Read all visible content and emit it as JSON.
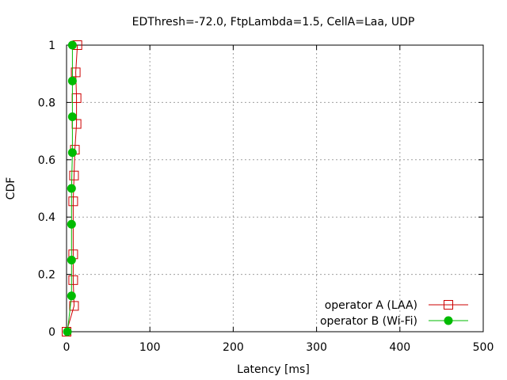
{
  "chart_data": {
    "type": "line",
    "title": "EDThresh=-72.0, FtpLambda=1.5, CellA=Laa, UDP",
    "xlabel": "Latency [ms]",
    "ylabel": "CDF",
    "xlim": [
      0,
      500
    ],
    "ylim": [
      0,
      1
    ],
    "xticks": [
      "0",
      "100",
      "200",
      "300",
      "400",
      "500"
    ],
    "yticks": [
      "0",
      "0.2",
      "0.4",
      "0.6",
      "0.8",
      "1"
    ],
    "grid": true,
    "legend_position": "bottom-right",
    "series": [
      {
        "name": "operator A (LAA)",
        "color": "#cc0000",
        "marker": "open-square",
        "x": [
          0,
          9,
          8,
          8,
          8,
          9,
          10,
          12,
          12,
          11,
          13
        ],
        "y": [
          0,
          0.09,
          0.18,
          0.27,
          0.455,
          0.545,
          0.635,
          0.725,
          0.815,
          0.905,
          1.0
        ]
      },
      {
        "name": "operator B (Wi-Fi)",
        "color": "#00bb00",
        "marker": "filled-circle",
        "x": [
          1,
          6,
          6,
          6,
          6,
          7,
          7,
          7,
          7
        ],
        "y": [
          0,
          0.125,
          0.25,
          0.375,
          0.5,
          0.625,
          0.75,
          0.875,
          1.0
        ]
      }
    ]
  }
}
